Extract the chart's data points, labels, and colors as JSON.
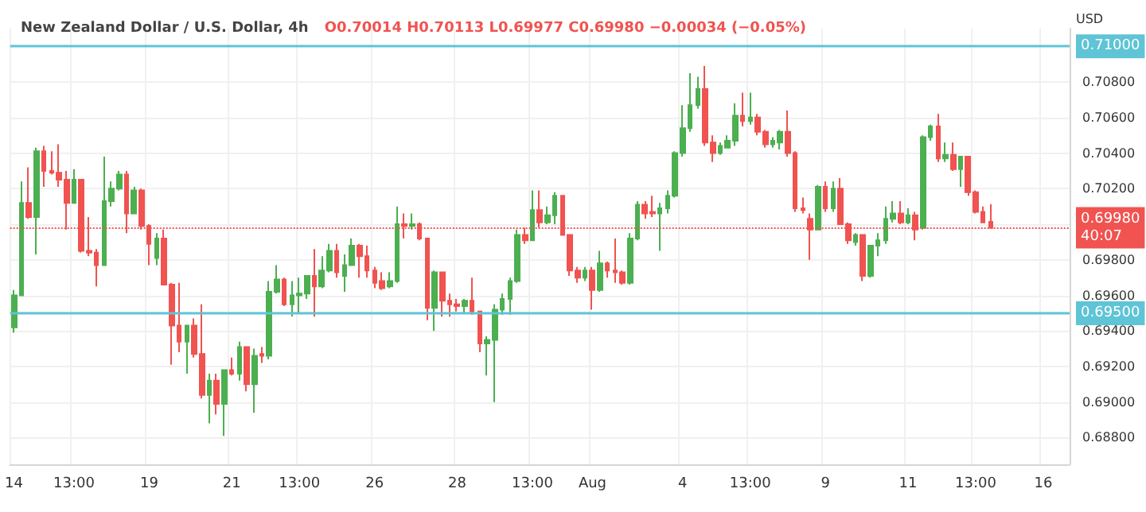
{
  "chart_data": {
    "type": "candlestick",
    "title": "New Zealand Dollar / U.S. Dollar, 4h",
    "subtitle": "O0.70014 H0.70113 L0.69977 C0.69980 −0.00034 (−0.05%)",
    "ylabel": "USD",
    "categories": [
      "14",
      null,
      null,
      null,
      null,
      null,
      null,
      null,
      "13:00",
      null,
      null,
      null,
      null,
      null,
      null,
      null,
      null,
      null,
      "19",
      null,
      null,
      null,
      null,
      null,
      null,
      null,
      null,
      null,
      null,
      "21",
      null,
      null,
      null,
      null,
      null,
      null,
      null,
      null,
      "13:00",
      null,
      null,
      null,
      null,
      null,
      null,
      null,
      null,
      null,
      "26",
      null,
      null,
      null,
      null,
      null,
      null,
      null,
      null,
      null,
      null,
      "28",
      null,
      null,
      null,
      null,
      null,
      null,
      null,
      null,
      null,
      "13:00",
      null,
      null,
      null,
      null,
      null,
      null,
      null,
      "Aug",
      null,
      null,
      null,
      null,
      null,
      null,
      null,
      null,
      null,
      null,
      null,
      "4",
      null,
      null,
      null,
      null,
      null,
      null,
      null,
      null,
      "13:00",
      null,
      null,
      null,
      null,
      null,
      null,
      null,
      null,
      null,
      "9",
      null,
      null,
      null,
      null,
      null,
      null,
      null,
      null,
      null,
      null,
      "11",
      null,
      null,
      null,
      null,
      null,
      null,
      null,
      null,
      "13:00",
      null,
      null,
      null,
      null,
      null,
      null,
      null,
      null,
      "16",
      null,
      null,
      null
    ],
    "ohlc": [
      [
        0.6942,
        0.6963,
        0.6939,
        0.696
      ],
      [
        0.696,
        0.7024,
        0.696,
        0.7012
      ],
      [
        0.7012,
        0.7032,
        0.7003,
        0.7004
      ],
      [
        0.7004,
        0.7043,
        0.6983,
        0.7041
      ],
      [
        0.7041,
        0.7044,
        0.7021,
        0.703
      ],
      [
        0.703,
        0.7041,
        0.7028,
        0.7029
      ],
      [
        0.7029,
        0.7045,
        0.7021,
        0.7025
      ],
      [
        0.7025,
        0.703,
        0.6997,
        0.7012
      ],
      [
        0.7012,
        0.7031,
        0.7012,
        0.7025
      ],
      [
        0.7025,
        0.7025,
        0.6984,
        0.6985
      ],
      [
        0.6985,
        0.7004,
        0.6982,
        0.6984
      ],
      [
        0.6984,
        0.6986,
        0.6965,
        0.6977
      ],
      [
        0.6977,
        0.7038,
        0.6977,
        0.7013
      ],
      [
        0.7013,
        0.7024,
        0.701,
        0.702
      ],
      [
        0.702,
        0.703,
        0.7019,
        0.7028
      ],
      [
        0.7028,
        0.703,
        0.6995,
        0.7006
      ],
      [
        0.7006,
        0.7021,
        0.7006,
        0.7019
      ],
      [
        0.7019,
        0.702,
        0.6997,
        0.6999
      ],
      [
        0.6999,
        0.7,
        0.6977,
        0.6989
      ],
      [
        0.6981,
        0.6995,
        0.6977,
        0.6992
      ],
      [
        0.6992,
        0.6997,
        0.6966,
        0.6966
      ],
      [
        0.6966,
        0.6967,
        0.6921,
        0.6943
      ],
      [
        0.6943,
        0.6967,
        0.6928,
        0.6934
      ],
      [
        0.6934,
        0.6943,
        0.6916,
        0.6943
      ],
      [
        0.6943,
        0.6947,
        0.6925,
        0.6927
      ],
      [
        0.6927,
        0.6955,
        0.6902,
        0.6904
      ],
      [
        0.6904,
        0.6916,
        0.6888,
        0.6912
      ],
      [
        0.6912,
        0.6916,
        0.6893,
        0.6899
      ],
      [
        0.6899,
        0.6918,
        0.6881,
        0.6918
      ],
      [
        0.6918,
        0.6925,
        0.6915,
        0.6916
      ],
      [
        0.6916,
        0.6934,
        0.6912,
        0.6931
      ],
      [
        0.6931,
        0.6931,
        0.6906,
        0.691
      ],
      [
        0.691,
        0.693,
        0.6894,
        0.6926
      ],
      [
        0.6927,
        0.6931,
        0.6922,
        0.6926
      ],
      [
        0.6926,
        0.6968,
        0.6924,
        0.6962
      ],
      [
        0.6962,
        0.6977,
        0.6961,
        0.6969
      ],
      [
        0.6969,
        0.697,
        0.6954,
        0.6955
      ],
      [
        0.6955,
        0.6968,
        0.6948,
        0.696
      ],
      [
        0.696,
        0.697,
        0.695,
        0.6961
      ],
      [
        0.6961,
        0.6971,
        0.6958,
        0.6971
      ],
      [
        0.6971,
        0.6986,
        0.6948,
        0.6965
      ],
      [
        0.6965,
        0.6982,
        0.6964,
        0.6974
      ],
      [
        0.6974,
        0.6989,
        0.6973,
        0.6985
      ],
      [
        0.6985,
        0.6989,
        0.697,
        0.6973
      ],
      [
        0.6971,
        0.6983,
        0.6962,
        0.6977
      ],
      [
        0.6977,
        0.6992,
        0.6977,
        0.6988
      ],
      [
        0.6988,
        0.6989,
        0.697,
        0.6982
      ],
      [
        0.6982,
        0.6988,
        0.697,
        0.6974
      ],
      [
        0.6974,
        0.6976,
        0.6964,
        0.6967
      ],
      [
        0.6968,
        0.6973,
        0.6963,
        0.6964
      ],
      [
        0.6965,
        0.6973,
        0.6964,
        0.6968
      ],
      [
        0.6968,
        0.701,
        0.6967,
        0.7
      ],
      [
        0.7,
        0.7006,
        0.6992,
        0.6999
      ],
      [
        0.6999,
        0.7006,
        0.6997,
        0.7
      ],
      [
        0.7,
        0.7001,
        0.6991,
        0.6992
      ],
      [
        0.6992,
        0.6992,
        0.6946,
        0.6953
      ],
      [
        0.6953,
        0.6974,
        0.694,
        0.6973
      ],
      [
        0.6973,
        0.6973,
        0.6948,
        0.6957
      ],
      [
        0.6957,
        0.6961,
        0.6948,
        0.6955
      ],
      [
        0.6955,
        0.6958,
        0.6951,
        0.6954
      ],
      [
        0.6954,
        0.6958,
        0.695,
        0.6957
      ],
      [
        0.6957,
        0.697,
        0.6949,
        0.6951
      ],
      [
        0.6951,
        0.6951,
        0.6928,
        0.6933
      ],
      [
        0.6933,
        0.6937,
        0.6915,
        0.6935
      ],
      [
        0.6935,
        0.6955,
        0.69,
        0.6952
      ],
      [
        0.6952,
        0.6961,
        0.6949,
        0.6958
      ],
      [
        0.6958,
        0.697,
        0.6949,
        0.6968
      ],
      [
        0.6968,
        0.6997,
        0.6967,
        0.6994
      ],
      [
        0.6994,
        0.6998,
        0.6989,
        0.6991
      ],
      [
        0.6991,
        0.7019,
        0.6991,
        0.7008
      ],
      [
        0.7008,
        0.7019,
        0.6998,
        0.7001
      ],
      [
        0.7001,
        0.701,
        0.7,
        0.7005
      ],
      [
        0.7005,
        0.7018,
        0.7,
        0.7016
      ],
      [
        0.7016,
        0.7016,
        0.6994,
        0.6994
      ],
      [
        0.6994,
        0.6994,
        0.6971,
        0.6974
      ],
      [
        0.6974,
        0.6976,
        0.6967,
        0.697
      ],
      [
        0.697,
        0.6976,
        0.6968,
        0.6974
      ],
      [
        0.6974,
        0.6976,
        0.6952,
        0.6963
      ],
      [
        0.6963,
        0.6985,
        0.6962,
        0.6978
      ],
      [
        0.6978,
        0.6979,
        0.697,
        0.6974
      ],
      [
        0.6974,
        0.6992,
        0.6967,
        0.6973
      ],
      [
        0.6973,
        0.6974,
        0.6966,
        0.6967
      ],
      [
        0.6967,
        0.6995,
        0.6966,
        0.6992
      ],
      [
        0.6992,
        0.7013,
        0.6991,
        0.7011
      ],
      [
        0.7011,
        0.7013,
        0.7003,
        0.7006
      ],
      [
        0.7007,
        0.7016,
        0.7004,
        0.7006
      ],
      [
        0.7006,
        0.7012,
        0.6985,
        0.7009
      ],
      [
        0.7009,
        0.7019,
        0.7006,
        0.7016
      ],
      [
        0.7016,
        0.7041,
        0.7015,
        0.704
      ],
      [
        0.704,
        0.7067,
        0.7038,
        0.7054
      ],
      [
        0.7054,
        0.7085,
        0.7052,
        0.7067
      ],
      [
        0.7067,
        0.7083,
        0.7065,
        0.7076
      ],
      [
        0.7076,
        0.7089,
        0.7044,
        0.7046
      ],
      [
        0.7046,
        0.705,
        0.7035,
        0.704
      ],
      [
        0.704,
        0.7046,
        0.7039,
        0.7044
      ],
      [
        0.7043,
        0.705,
        0.7043,
        0.7047
      ],
      [
        0.7047,
        0.7068,
        0.7044,
        0.7061
      ],
      [
        0.7061,
        0.7074,
        0.7055,
        0.7058
      ],
      [
        0.7058,
        0.7074,
        0.7056,
        0.706
      ],
      [
        0.706,
        0.7062,
        0.705,
        0.7052
      ],
      [
        0.7052,
        0.7053,
        0.7043,
        0.7045
      ],
      [
        0.7045,
        0.7049,
        0.7043,
        0.7047
      ],
      [
        0.7046,
        0.7053,
        0.7042,
        0.7052
      ],
      [
        0.7052,
        0.7064,
        0.7038,
        0.704
      ],
      [
        0.704,
        0.7041,
        0.7007,
        0.7009
      ],
      [
        0.7009,
        0.7015,
        0.7006,
        0.7008
      ],
      [
        0.7003,
        0.7006,
        0.698,
        0.6997
      ],
      [
        0.6997,
        0.7022,
        0.6997,
        0.7021
      ],
      [
        0.7021,
        0.7024,
        0.7007,
        0.7009
      ],
      [
        0.7009,
        0.7024,
        0.7007,
        0.702
      ],
      [
        0.702,
        0.7026,
        0.7,
        0.7
      ],
      [
        0.7,
        0.7001,
        0.6989,
        0.6991
      ],
      [
        0.699,
        0.6995,
        0.6988,
        0.6994
      ],
      [
        0.6994,
        0.6994,
        0.6968,
        0.6971
      ],
      [
        0.6971,
        0.6988,
        0.697,
        0.6988
      ],
      [
        0.6988,
        0.6995,
        0.6982,
        0.6991
      ],
      [
        0.6991,
        0.701,
        0.6989,
        0.7003
      ],
      [
        0.7003,
        0.7013,
        0.7001,
        0.7006
      ],
      [
        0.7006,
        0.7013,
        0.7,
        0.7001
      ],
      [
        0.7001,
        0.7009,
        0.7,
        0.7005
      ],
      [
        0.7005,
        0.7007,
        0.6991,
        0.6997
      ],
      [
        0.6998,
        0.705,
        0.6997,
        0.7049
      ],
      [
        0.7049,
        0.7056,
        0.7047,
        0.7055
      ],
      [
        0.7055,
        0.7062,
        0.7035,
        0.7037
      ],
      [
        0.7037,
        0.7046,
        0.7035,
        0.7039
      ],
      [
        0.7039,
        0.7046,
        0.703,
        0.7031
      ],
      [
        0.7031,
        0.7038,
        0.7021,
        0.7038
      ],
      [
        0.7038,
        0.7038,
        0.7016,
        0.7018
      ],
      [
        0.7018,
        0.7019,
        0.7006,
        0.7007
      ],
      [
        0.7007,
        0.701,
        0.7001,
        0.7001
      ],
      [
        0.70014,
        0.70113,
        0.69977,
        0.6998
      ],
      null,
      null,
      null,
      null,
      null,
      null,
      null,
      null,
      null,
      null
    ],
    "colors": [
      "#4caf50",
      "#4caf50",
      "#f05350",
      "#4caf50",
      "#f05350",
      "#f05350",
      "#f05350",
      "#f05350",
      "#4caf50",
      "#f05350",
      "#f05350",
      "#f05350",
      "#4caf50",
      "#4caf50",
      "#4caf50",
      "#f05350",
      "#4caf50",
      "#f05350",
      "#f05350",
      "#4caf50",
      "#f05350",
      "#f05350",
      "#f05350",
      "#4caf50",
      "#f05350",
      "#f05350",
      "#4caf50",
      "#f05350",
      "#4caf50",
      "#f05350",
      "#4caf50",
      "#f05350",
      "#4caf50",
      "#f05350",
      "#4caf50",
      "#4caf50",
      "#f05350",
      "#4caf50",
      "#4caf50",
      "#4caf50",
      "#f05350",
      "#4caf50",
      "#4caf50",
      "#f05350",
      "#4caf50",
      "#4caf50",
      "#f05350",
      "#f05350",
      "#f05350",
      "#f05350",
      "#4caf50",
      "#4caf50",
      "#f05350",
      "#4caf50",
      "#f05350",
      "#f05350",
      "#4caf50",
      "#f05350",
      "#f05350",
      "#f05350",
      "#4caf50",
      "#f05350",
      "#f05350",
      "#4caf50",
      "#4caf50",
      "#4caf50",
      "#4caf50",
      "#4caf50",
      "#f05350",
      "#4caf50",
      "#f05350",
      "#4caf50",
      "#4caf50",
      "#f05350",
      "#f05350",
      "#f05350",
      "#4caf50",
      "#f05350",
      "#4caf50",
      "#f05350",
      "#f05350",
      "#f05350",
      "#4caf50",
      "#4caf50",
      "#f05350",
      "#f05350",
      "#4caf50",
      "#4caf50",
      "#4caf50",
      "#4caf50",
      "#4caf50",
      "#4caf50",
      "#f05350",
      "#f05350",
      "#4caf50",
      "#4caf50",
      "#4caf50",
      "#f05350",
      "#4caf50",
      "#f05350",
      "#f05350",
      "#4caf50",
      "#4caf50",
      "#f05350",
      "#f05350",
      "#f05350",
      "#f05350",
      "#4caf50",
      "#f05350",
      "#4caf50",
      "#f05350",
      "#f05350",
      "#4caf50",
      "#f05350",
      "#4caf50",
      "#4caf50",
      "#4caf50",
      "#4caf50",
      "#f05350",
      "#4caf50",
      "#f05350",
      "#4caf50",
      "#4caf50",
      "#f05350",
      "#4caf50",
      "#f05350",
      "#4caf50",
      "#f05350",
      "#f05350",
      "#f05350",
      "#f05350",
      null,
      null,
      null,
      null,
      null,
      null,
      null,
      null,
      null,
      null
    ],
    "ylim": [
      0.6865,
      0.711
    ],
    "yticks": [
      {
        "value": 0.688,
        "label": "0.68800"
      },
      {
        "value": 0.69,
        "label": "0.69000"
      },
      {
        "value": 0.692,
        "label": "0.69200"
      },
      {
        "value": 0.694,
        "label": "0.69400"
      },
      {
        "value": 0.696,
        "label": "0.69600"
      },
      {
        "value": 0.698,
        "label": "0.69800"
      },
      {
        "value": 0.7,
        "label": null
      },
      {
        "value": 0.702,
        "label": "0.70200"
      },
      {
        "value": 0.704,
        "label": "0.70400"
      },
      {
        "value": 0.706,
        "label": "0.70600"
      },
      {
        "value": 0.708,
        "label": "0.70800"
      }
    ],
    "ref_lines": [
      {
        "axis": "y",
        "value": 0.71,
        "label": "0.71000",
        "color": "#5ec4d6",
        "line_style": "solid"
      },
      {
        "axis": "y",
        "value": 0.695,
        "label": "0.69500",
        "color": "#5ec4d6",
        "line_style": "solid"
      },
      {
        "axis": "y",
        "value": 0.6998,
        "label": "0.69980\n40:07",
        "color": "#f05350",
        "line_style": "dotted"
      }
    ],
    "grid": true
  }
}
